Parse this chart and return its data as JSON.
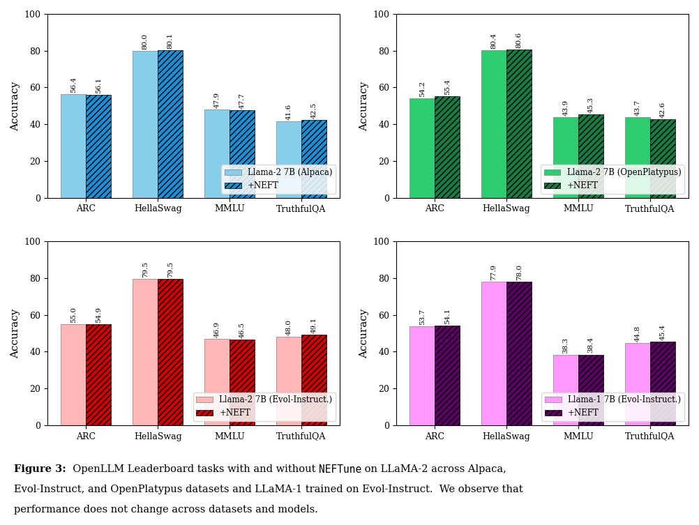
{
  "subplots": [
    {
      "label": "Llama-2 7B (Alpaca)",
      "label_neft": "+NEFT",
      "categories": [
        "ARC",
        "HellaSwag",
        "MMLU",
        "TruthfulQA"
      ],
      "values": [
        56.4,
        80.0,
        47.9,
        41.6
      ],
      "values_neft": [
        56.1,
        80.1,
        47.7,
        42.5
      ],
      "color_base": "#87CEEB",
      "color_neft": "#1B8FD4",
      "legend_loc": "lower center"
    },
    {
      "label": "Llama-2 7B (OpenPlatypus)",
      "label_neft": "+NEFT",
      "categories": [
        "ARC",
        "HellaSwag",
        "MMLU",
        "TruthfulQA"
      ],
      "values": [
        54.2,
        80.4,
        43.9,
        43.7
      ],
      "values_neft": [
        55.4,
        80.6,
        45.3,
        42.6
      ],
      "color_base": "#2ECC71",
      "color_neft": "#1A7A45",
      "legend_loc": "lower center"
    },
    {
      "label": "Llama-2 7B (Evol-Instruct.)",
      "label_neft": "+NEFT",
      "categories": [
        "ARC",
        "HellaSwag",
        "MMLU",
        "TruthfulQA"
      ],
      "values": [
        55.0,
        79.5,
        46.9,
        48.0
      ],
      "values_neft": [
        54.9,
        79.5,
        46.5,
        49.1
      ],
      "color_base": "#FFB6B6",
      "color_neft": "#CC0000",
      "legend_loc": "lower center"
    },
    {
      "label": "Llama-1 7B (Evol-Instruct.)",
      "label_neft": "+NEFT",
      "categories": [
        "ARC",
        "HellaSwag",
        "MMLU",
        "TruthfulQA"
      ],
      "values": [
        53.7,
        77.9,
        38.3,
        44.8
      ],
      "values_neft": [
        54.1,
        78.0,
        38.4,
        45.4
      ],
      "color_base": "#FF99FF",
      "color_neft": "#5B0060",
      "legend_loc": "lower center"
    }
  ],
  "ylabel": "Accuracy",
  "ylim": [
    0,
    100
  ],
  "yticks": [
    0,
    20,
    40,
    60,
    80,
    100
  ],
  "bar_width": 0.35,
  "value_fontsize": 7.5,
  "legend_fontsize": 8.5,
  "axis_fontsize": 11,
  "tick_fontsize": 9,
  "caption_prefix": "Figure 3: ",
  "caption_mono": "NEFTune",
  "caption_rest": " on LLaMA-2 across Alpaca,\nEvol-Instruct, and OpenPlatypus datasets and LLaMA-1 trained on Evol-Instruct.  We observe that\nperformance does not change across datasets and models.",
  "caption_intro": " OpenLLM Leaderboard tasks with and without "
}
